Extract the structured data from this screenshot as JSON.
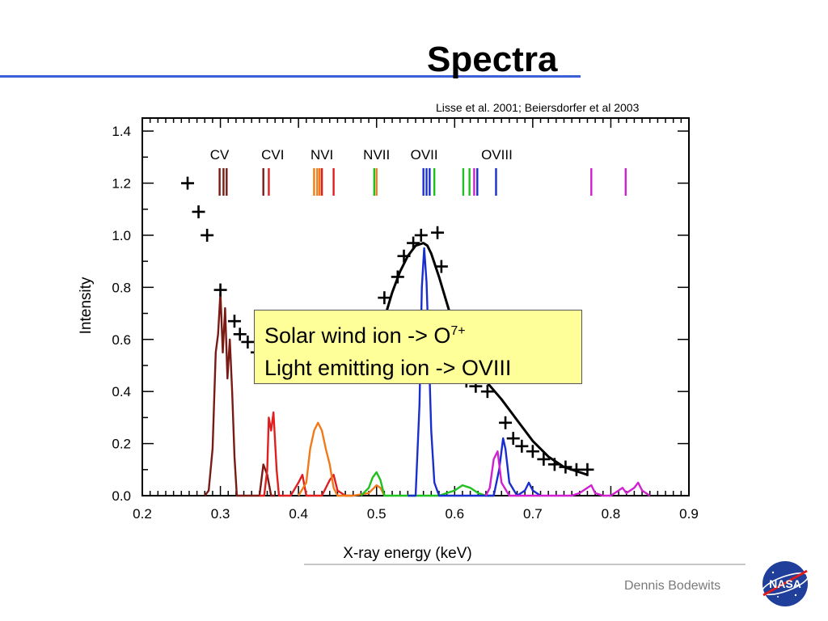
{
  "slide": {
    "title": "Spectra",
    "citation": "Lisse et al. 2001; Beiersdorfer et al 2003",
    "annotation_line1_prefix": "Solar wind ion -> O",
    "annotation_line1_sup": "7+",
    "annotation_line2": "Light emitting ion -> OVIII",
    "author": "Dennis Bodewits",
    "logo_text": "NASA"
  },
  "chart_data": {
    "type": "line",
    "xlabel": "X-ray energy (keV)",
    "ylabel": "Intensity",
    "xlim": [
      0.2,
      0.9
    ],
    "ylim": [
      0.0,
      1.45
    ],
    "xticks": [
      "0.2",
      "0.3",
      "0.4",
      "0.5",
      "0.6",
      "0.7",
      "0.8",
      "0.9"
    ],
    "yticks": [
      "0.0",
      "0.2",
      "0.4",
      "0.6",
      "0.8",
      "1.0",
      "1.2",
      "1.4"
    ],
    "ion_labels": [
      {
        "text": "CV",
        "x": 0.299
      },
      {
        "text": "CVI",
        "x": 0.367
      },
      {
        "text": "NVI",
        "x": 0.43
      },
      {
        "text": "NVII",
        "x": 0.5
      },
      {
        "text": "OVII",
        "x": 0.561
      },
      {
        "text": "OVIII",
        "x": 0.654
      }
    ],
    "line_markers": [
      {
        "x": 0.299,
        "color": "#7a1a14"
      },
      {
        "x": 0.304,
        "color": "#7a1a14"
      },
      {
        "x": 0.308,
        "color": "#7a1a14"
      },
      {
        "x": 0.355,
        "color": "#7a1a14"
      },
      {
        "x": 0.362,
        "color": "#e02020"
      },
      {
        "x": 0.42,
        "color": "#f07a1a"
      },
      {
        "x": 0.424,
        "color": "#f07a1a"
      },
      {
        "x": 0.427,
        "color": "#f07a1a"
      },
      {
        "x": 0.43,
        "color": "#e02020"
      },
      {
        "x": 0.445,
        "color": "#e02020"
      },
      {
        "x": 0.497,
        "color": "#20c020"
      },
      {
        "x": 0.5,
        "color": "#f07a1a"
      },
      {
        "x": 0.56,
        "color": "#1a2ed0"
      },
      {
        "x": 0.564,
        "color": "#1a2ed0"
      },
      {
        "x": 0.568,
        "color": "#1a2ed0"
      },
      {
        "x": 0.574,
        "color": "#20c020"
      },
      {
        "x": 0.611,
        "color": "#20c020"
      },
      {
        "x": 0.619,
        "color": "#20c020"
      },
      {
        "x": 0.625,
        "color": "#d020d0"
      },
      {
        "x": 0.629,
        "color": "#1a2ed0"
      },
      {
        "x": 0.653,
        "color": "#1a2ed0"
      },
      {
        "x": 0.775,
        "color": "#d020d0"
      },
      {
        "x": 0.819,
        "color": "#d020d0"
      }
    ],
    "series": [
      {
        "color": "#7a1a14",
        "x": [
          0.28,
          0.285,
          0.29,
          0.294,
          0.297,
          0.3,
          0.303,
          0.306,
          0.309,
          0.312,
          0.315,
          0.318,
          0.321,
          0.33,
          0.34,
          0.35,
          0.355,
          0.36,
          0.365,
          0.37
        ],
        "y": [
          0.0,
          0.02,
          0.18,
          0.55,
          0.62,
          0.78,
          0.55,
          0.72,
          0.45,
          0.6,
          0.4,
          0.15,
          0.0,
          0.0,
          0.0,
          0.0,
          0.12,
          0.08,
          0.0,
          0.0
        ]
      },
      {
        "color": "#e02020",
        "x": [
          0.35,
          0.356,
          0.36,
          0.362,
          0.365,
          0.368,
          0.372,
          0.375,
          0.38,
          0.39,
          0.4,
          0.405,
          0.41,
          0.42,
          0.43,
          0.44,
          0.445,
          0.45,
          0.46,
          0.47
        ],
        "y": [
          0.0,
          0.0,
          0.1,
          0.3,
          0.25,
          0.32,
          0.1,
          0.0,
          0.0,
          0.0,
          0.05,
          0.08,
          0.0,
          0.0,
          0.0,
          0.06,
          0.08,
          0.02,
          0.0,
          0.0
        ]
      },
      {
        "color": "#f07a1a",
        "x": [
          0.4,
          0.41,
          0.415,
          0.42,
          0.425,
          0.43,
          0.435,
          0.44,
          0.445,
          0.45,
          0.47,
          0.49,
          0.5,
          0.505,
          0.51
        ],
        "y": [
          0.0,
          0.05,
          0.18,
          0.25,
          0.28,
          0.25,
          0.18,
          0.12,
          0.03,
          0.0,
          0.0,
          0.01,
          0.04,
          0.03,
          0.0
        ]
      },
      {
        "color": "#20c020",
        "x": [
          0.48,
          0.49,
          0.495,
          0.5,
          0.505,
          0.51,
          0.52,
          0.58,
          0.6,
          0.61,
          0.62,
          0.63,
          0.64,
          0.65
        ],
        "y": [
          0.0,
          0.03,
          0.07,
          0.09,
          0.06,
          0.0,
          0.0,
          0.0,
          0.02,
          0.04,
          0.03,
          0.01,
          0.0,
          0.0
        ]
      },
      {
        "color": "#1a2ed0",
        "x": [
          0.54,
          0.55,
          0.555,
          0.558,
          0.561,
          0.564,
          0.567,
          0.57,
          0.574,
          0.58,
          0.59,
          0.65,
          0.657,
          0.662,
          0.665,
          0.67,
          0.68,
          0.69,
          0.695,
          0.7,
          0.71
        ],
        "y": [
          0.0,
          0.0,
          0.35,
          0.8,
          0.95,
          0.82,
          0.55,
          0.25,
          0.05,
          0.0,
          0.0,
          0.0,
          0.1,
          0.22,
          0.18,
          0.05,
          0.0,
          0.02,
          0.05,
          0.02,
          0.0
        ]
      },
      {
        "color": "#d020d0",
        "x": [
          0.64,
          0.645,
          0.65,
          0.655,
          0.66,
          0.67,
          0.75,
          0.76,
          0.77,
          0.775,
          0.78,
          0.79,
          0.8,
          0.81,
          0.815,
          0.82,
          0.83,
          0.835,
          0.84,
          0.85
        ],
        "y": [
          0.0,
          0.03,
          0.14,
          0.17,
          0.05,
          0.0,
          0.0,
          0.01,
          0.03,
          0.04,
          0.01,
          0.0,
          0.0,
          0.02,
          0.03,
          0.01,
          0.03,
          0.05,
          0.02,
          0.0
        ]
      },
      {
        "color": "#000000",
        "x": [
          0.49,
          0.5,
          0.51,
          0.52,
          0.53,
          0.54,
          0.55,
          0.56,
          0.565,
          0.57,
          0.58,
          0.59,
          0.6,
          0.62,
          0.64,
          0.66,
          0.68,
          0.7,
          0.72,
          0.74,
          0.76,
          0.77
        ],
        "y": [
          0.5,
          0.58,
          0.68,
          0.78,
          0.86,
          0.92,
          0.96,
          0.97,
          0.96,
          0.93,
          0.84,
          0.74,
          0.64,
          0.52,
          0.44,
          0.37,
          0.29,
          0.21,
          0.15,
          0.11,
          0.09,
          0.08
        ]
      }
    ],
    "scatter_plus": {
      "x": [
        0.258,
        0.272,
        0.283,
        0.3,
        0.318,
        0.325,
        0.335,
        0.347,
        0.51,
        0.527,
        0.535,
        0.547,
        0.557,
        0.578,
        0.583,
        0.615,
        0.627,
        0.642,
        0.665,
        0.675,
        0.686,
        0.7,
        0.714,
        0.728,
        0.742,
        0.756,
        0.77
      ],
      "y": [
        1.2,
        1.09,
        1.0,
        0.79,
        0.67,
        0.62,
        0.59,
        0.55,
        0.76,
        0.84,
        0.92,
        0.97,
        1.0,
        1.01,
        0.88,
        0.44,
        0.42,
        0.4,
        0.28,
        0.22,
        0.19,
        0.17,
        0.14,
        0.12,
        0.11,
        0.1,
        0.1
      ]
    }
  }
}
